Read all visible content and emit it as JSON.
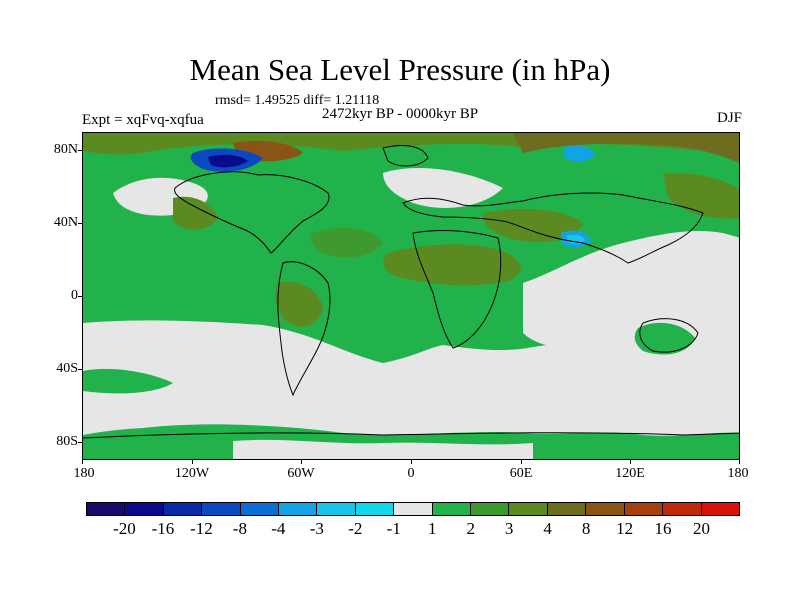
{
  "title": "Mean Sea Level Pressure (in hPa)",
  "stats": "rmsd= 1.49525 diff= 1.21118",
  "period": "2472kyr BP - 0000kyr BP",
  "experiment": "Expt = xqFvq-xqfua",
  "season": "DJF",
  "map": {
    "projection": "cylindrical equidistant",
    "lon_range": [
      -180,
      180
    ],
    "lat_range": [
      -90,
      90
    ],
    "y_ticks": [
      "80N",
      "40N",
      "0",
      "40S",
      "80S"
    ],
    "x_ticks": [
      "180",
      "120W",
      "60W",
      "0",
      "60E",
      "120E",
      "180"
    ]
  },
  "colorbar": {
    "colors": [
      "#1a0a6e",
      "#0a0a8c",
      "#0a2ba8",
      "#0a49c0",
      "#0a6ed6",
      "#12a3e6",
      "#1ac3ea",
      "#10d8e8",
      "#e6e6e6",
      "#22b24c",
      "#3e9a2e",
      "#5b8a20",
      "#6e6c1e",
      "#8a5414",
      "#a8400e",
      "#c02a0a",
      "#d8140a"
    ],
    "labels": [
      "-20",
      "-16",
      "-12",
      "-8",
      "-4",
      "-3",
      "-2",
      "-1",
      "1",
      "2",
      "3",
      "4",
      "8",
      "12",
      "16",
      "20"
    ]
  }
}
